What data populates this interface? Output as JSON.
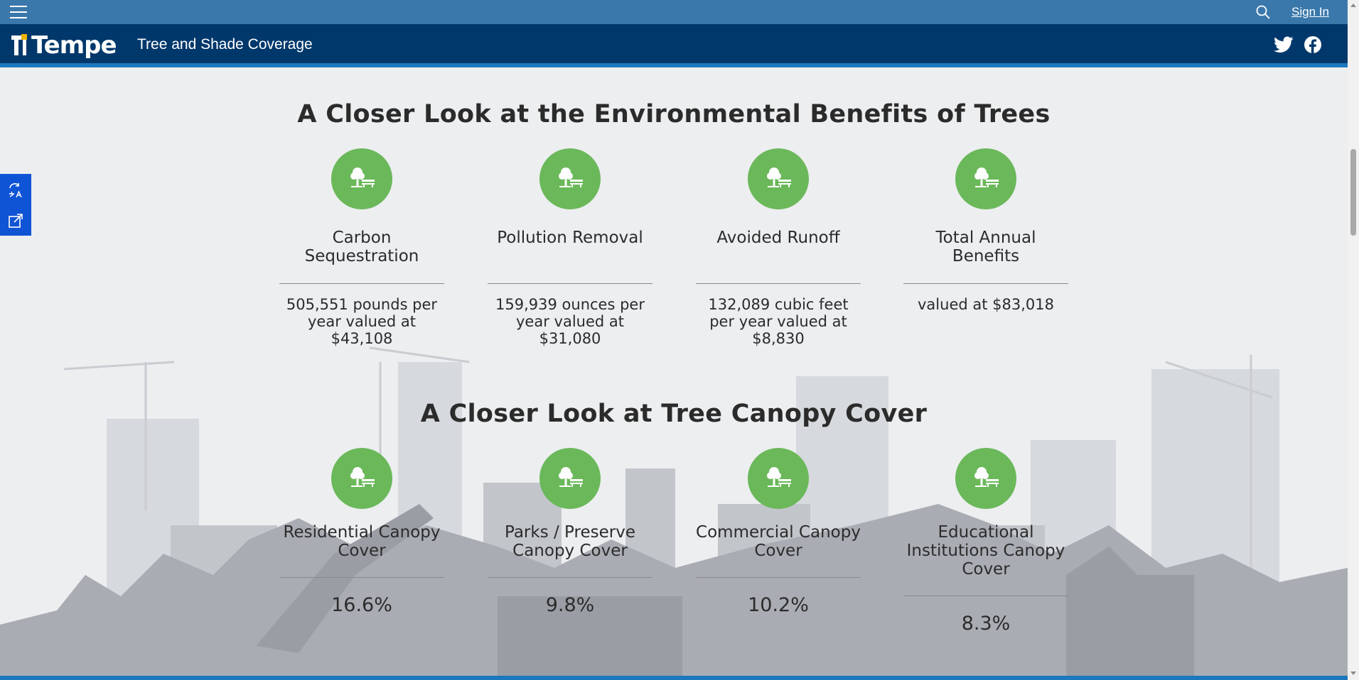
{
  "topbar": {
    "sign_in_label": "Sign In"
  },
  "header": {
    "logo_text": "Tempe",
    "site_title": "Tree and Shade Coverage"
  },
  "sections": [
    {
      "title": "A Closer Look at the Environmental Benefits of Trees",
      "cards": [
        {
          "label": "Carbon Sequestration",
          "value": "505,551 pounds per year valued at $43,108"
        },
        {
          "label": "Pollution Removal",
          "value": "159,939 ounces per year valued at $31,080"
        },
        {
          "label": "Avoided Runoff",
          "value": "132,089 cubic feet per year valued at $8,830"
        },
        {
          "label": "Total Annual Benefits",
          "value": "valued at $83,018"
        }
      ]
    },
    {
      "title": "A Closer Look at Tree Canopy Cover",
      "cards": [
        {
          "label": "Residential Canopy Cover",
          "value": "16.6%"
        },
        {
          "label": "Parks / Preserve Canopy Cover",
          "value": "9.8%"
        },
        {
          "label": "Commercial Canopy Cover",
          "value": "10.2%"
        },
        {
          "label": "Educational Institutions Canopy Cover",
          "value": "8.3%"
        }
      ]
    }
  ],
  "icons": {
    "card_icon": "tree-bench-icon",
    "menu": "hamburger-menu-icon",
    "search": "search-icon",
    "social": [
      "twitter-icon",
      "facebook-icon"
    ],
    "side_tools": [
      "translate-icon",
      "share-icon"
    ]
  },
  "colors": {
    "topbar": "#3a78ab",
    "header": "#00386b",
    "accent_bar": "#1b78bd",
    "icon_circle": "#6bb85a",
    "side_tools": "#1054d6"
  }
}
